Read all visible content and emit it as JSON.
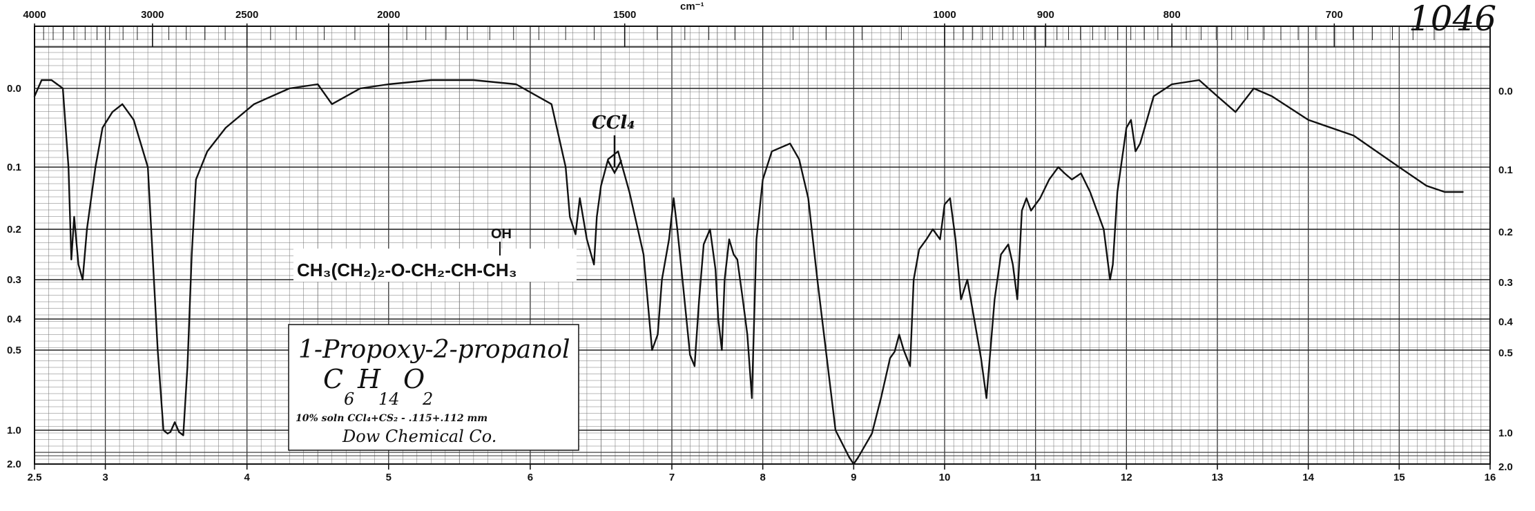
{
  "sheet_number": "1046",
  "chart_data": {
    "type": "line",
    "top_axis": {
      "unit": "cm⁻¹",
      "ticks": [
        "4000",
        "3000",
        "2500",
        "2000",
        "1500",
        "1000",
        "900",
        "800",
        "700"
      ],
      "tick_values_um": [
        2.5,
        3.333,
        4.0,
        5.0,
        6.667,
        10.0,
        11.111,
        12.5,
        14.286
      ]
    },
    "bottom_axis": {
      "ticks": [
        "2.5",
        "3",
        "4",
        "5",
        "6",
        "7",
        "8",
        "9",
        "10",
        "11",
        "12",
        "13",
        "14",
        "15",
        "16"
      ],
      "tick_values_um": [
        2.5,
        3,
        4,
        5,
        6,
        7,
        8,
        9,
        10,
        11,
        12,
        13,
        14,
        15,
        16
      ],
      "xlim": [
        2.5,
        16
      ]
    },
    "y_axis": {
      "ticks": [
        "0.0",
        "0.1",
        "0.2",
        "0.3",
        "0.4",
        "0.5",
        "1.0",
        "2.0"
      ],
      "tick_values": [
        0.0,
        0.1,
        0.2,
        0.3,
        0.4,
        0.5,
        1.0,
        2.0
      ],
      "scale": "absorbance (nonlinear)"
    },
    "grid": true,
    "series": [
      {
        "x": [
          2.5,
          2.55,
          2.62,
          2.7,
          2.74,
          2.76,
          2.78,
          2.81,
          2.84,
          2.87,
          2.93,
          2.98,
          3.05,
          3.12,
          3.2,
          3.3,
          3.37,
          3.41,
          3.44,
          3.46,
          3.49,
          3.52,
          3.55,
          3.58,
          3.61,
          3.64,
          3.72,
          3.85,
          4.05,
          4.3,
          4.5,
          4.6,
          4.8,
          5.0,
          5.3,
          5.6,
          5.9,
          6.15,
          6.25,
          6.28,
          6.32,
          6.35,
          6.4,
          6.45,
          6.47,
          6.5,
          6.55,
          6.62,
          6.7,
          6.8,
          6.86,
          6.9,
          6.93,
          6.98,
          7.02,
          7.06,
          7.1,
          7.2,
          7.25,
          7.3,
          7.35,
          7.42,
          7.48,
          7.51,
          7.55,
          7.58,
          7.63,
          7.68,
          7.72,
          7.78,
          7.83,
          7.88,
          7.93,
          8.0,
          8.1,
          8.3,
          8.4,
          8.5,
          8.6,
          8.8,
          8.95,
          9.0,
          9.05,
          9.2,
          9.3,
          9.4,
          9.45,
          9.5,
          9.55,
          9.62,
          9.66,
          9.72,
          9.8,
          9.87,
          9.95,
          10.0,
          10.06,
          10.12,
          10.18,
          10.25,
          10.4,
          10.46,
          10.55,
          10.62,
          10.7,
          10.75,
          10.8,
          10.85,
          10.9,
          10.95,
          11.05,
          11.15,
          11.25,
          11.32,
          11.4,
          11.5,
          11.6,
          11.75,
          11.82,
          11.85,
          11.9,
          12.0,
          12.05,
          12.1,
          12.15,
          12.2,
          12.3,
          12.5,
          12.8,
          13.0,
          13.2,
          13.4,
          13.6,
          14.0,
          14.5,
          15.0,
          15.3,
          15.5,
          15.7
        ],
        "y": [
          0.01,
          -0.02,
          -0.02,
          0.0,
          0.1,
          0.26,
          0.18,
          0.27,
          0.3,
          0.2,
          0.1,
          0.05,
          0.03,
          0.02,
          0.04,
          0.1,
          0.5,
          1.0,
          1.1,
          1.05,
          0.95,
          1.05,
          1.15,
          0.6,
          0.25,
          0.12,
          0.08,
          0.05,
          0.02,
          0.0,
          -0.01,
          0.02,
          0.0,
          -0.01,
          -0.02,
          -0.02,
          -0.01,
          0.02,
          0.1,
          0.18,
          0.21,
          0.15,
          0.22,
          0.27,
          0.18,
          0.13,
          0.09,
          0.08,
          0.14,
          0.25,
          0.5,
          0.45,
          0.3,
          0.22,
          0.15,
          0.2,
          0.27,
          0.53,
          0.6,
          0.35,
          0.23,
          0.2,
          0.28,
          0.4,
          0.5,
          0.3,
          0.22,
          0.25,
          0.26,
          0.35,
          0.45,
          0.8,
          0.22,
          0.12,
          0.08,
          0.07,
          0.09,
          0.15,
          0.3,
          1.0,
          1.8,
          2.0,
          1.8,
          1.1,
          0.8,
          0.55,
          0.51,
          0.45,
          0.5,
          0.6,
          0.3,
          0.24,
          0.22,
          0.2,
          0.22,
          0.16,
          0.15,
          0.22,
          0.35,
          0.3,
          0.55,
          0.8,
          0.35,
          0.25,
          0.23,
          0.27,
          0.35,
          0.17,
          0.15,
          0.17,
          0.15,
          0.12,
          0.1,
          0.11,
          0.12,
          0.11,
          0.14,
          0.2,
          0.3,
          0.27,
          0.14,
          0.05,
          0.04,
          0.08,
          0.07,
          0.05,
          0.01,
          -0.01,
          -0.02,
          0.01,
          0.03,
          0.0,
          0.01,
          0.04,
          0.06,
          0.1,
          0.13,
          0.14,
          0.14
        ]
      }
    ],
    "annotations": {
      "solvent_band": "CCl₄",
      "structure_main": "CH₃(CH₂)₂-O-CH₂-CH-CH₃",
      "structure_sub": "OH"
    },
    "label_box": {
      "name": "1-Propoxy-2-propanol",
      "formula_C": "C",
      "formula_C_sub": "6",
      "formula_H": "H",
      "formula_H_sub": "14",
      "formula_O": "O",
      "formula_O_sub": "2",
      "conditions": "10% soln CCl₄+CS₂ - .115+.112 mm",
      "source": "Dow Chemical Co."
    }
  }
}
